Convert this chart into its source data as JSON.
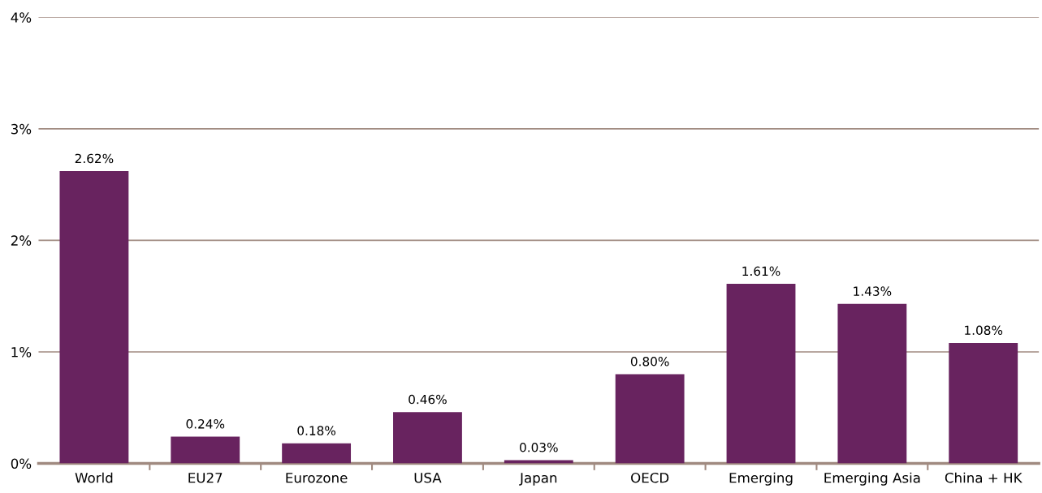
{
  "chart_data": {
    "type": "bar",
    "categories": [
      "World",
      "EU27",
      "Eurozone",
      "USA",
      "Japan",
      "OECD",
      "Emerging",
      "Emerging Asia",
      "China + HK"
    ],
    "values": [
      2.62,
      0.24,
      0.18,
      0.46,
      0.03,
      0.8,
      1.61,
      1.43,
      1.08
    ],
    "value_labels": [
      "2.62%",
      "0.24%",
      "0.18%",
      "0.46%",
      "0.03%",
      "0.80%",
      "1.61%",
      "1.43%",
      "1.08%"
    ],
    "color": "#68235f",
    "ylim": [
      0,
      4
    ],
    "yticks": [
      {
        "value": 0,
        "label": "0%"
      },
      {
        "value": 1,
        "label": "1%"
      },
      {
        "value": 2,
        "label": "2%"
      },
      {
        "value": 3,
        "label": "3%"
      },
      {
        "value": 4,
        "label": "4%"
      }
    ],
    "grid": "y"
  }
}
